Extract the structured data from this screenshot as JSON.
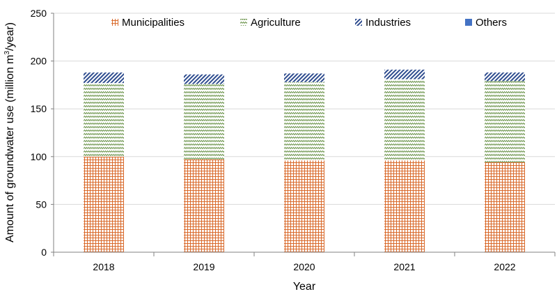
{
  "chart_data": {
    "type": "bar",
    "stacked": true,
    "categories": [
      "2018",
      "2019",
      "2020",
      "2021",
      "2022"
    ],
    "series": [
      {
        "name": "Municipalities",
        "values": [
          100,
          97,
          96,
          96,
          94
        ],
        "color": "#d9692a",
        "pattern": "grid"
      },
      {
        "name": "Agriculture",
        "values": [
          77,
          79,
          82,
          85,
          85
        ],
        "color": "#5e8a3a",
        "pattern": "zigzag"
      },
      {
        "name": "Industries",
        "values": [
          11,
          10,
          9,
          10,
          9
        ],
        "color": "#2f4d8f",
        "pattern": "diagonal"
      },
      {
        "name": "Others",
        "values": [
          0,
          0,
          0,
          0,
          0
        ],
        "color": "#4472c4",
        "pattern": "solid"
      }
    ],
    "xlabel": "Year",
    "ylabel_main": "Amount of groundwater use (million m",
    "ylabel_sup": "3",
    "ylabel_tail": "/year)",
    "ylim": [
      0,
      250
    ],
    "yticks": [
      0,
      50,
      100,
      150,
      200,
      250
    ],
    "grid": true,
    "legend_position": "top"
  }
}
